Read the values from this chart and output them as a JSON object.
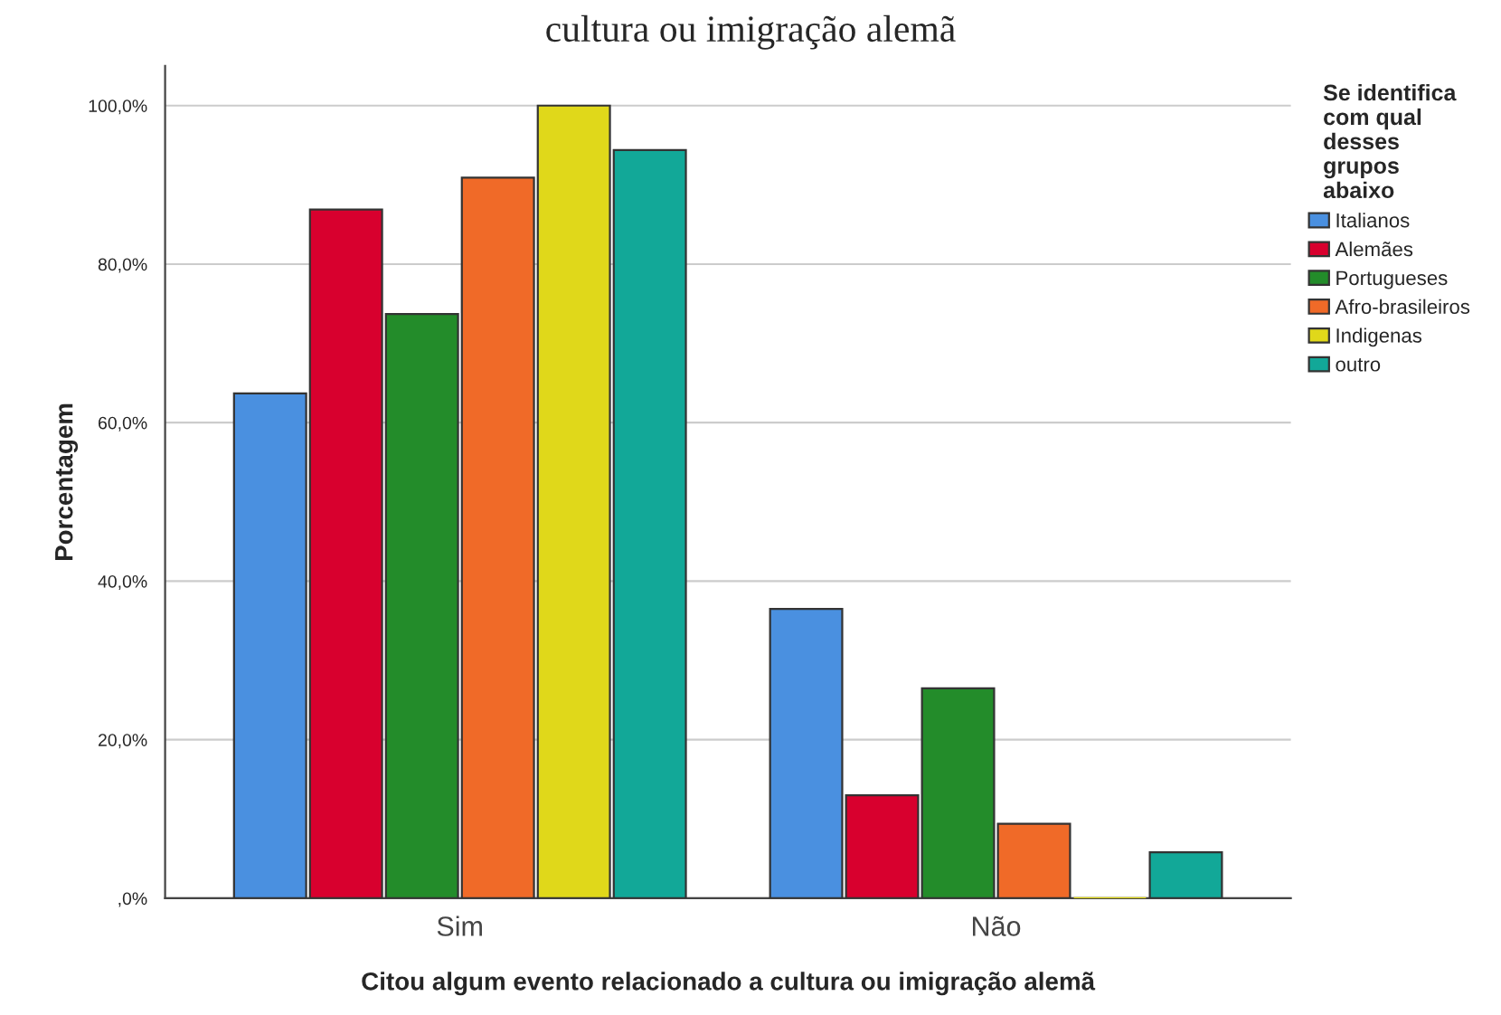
{
  "chart_data": {
    "type": "bar",
    "title": "cultura ou imigração alemã",
    "xlabel": "Citou algum evento relacionado a cultura ou imigração alemã",
    "ylabel": "Porcentagem",
    "legend_title": "Se identifica\ncom qual\ndesses\ngrupos\nabaixo",
    "categories": [
      "Sim",
      "Não"
    ],
    "series": [
      {
        "name": "Italianos",
        "color": "#4a90e0",
        "values": [
          63.7,
          36.5
        ]
      },
      {
        "name": "Alemães",
        "color": "#d8002e",
        "values": [
          86.9,
          13.0
        ]
      },
      {
        "name": "Portugueses",
        "color": "#238c2a",
        "values": [
          73.7,
          26.5
        ]
      },
      {
        "name": "Afro-brasileiros",
        "color": "#f06a28",
        "values": [
          90.9,
          9.4
        ]
      },
      {
        "name": "Indigenas",
        "color": "#e0d81a",
        "values": [
          100,
          0
        ]
      },
      {
        "name": "outro",
        "color": "#12a898",
        "values": [
          94.4,
          5.8
        ]
      }
    ],
    "ylim": [
      0,
      105
    ],
    "yticks": [
      {
        "value": 0,
        "label": ",0%"
      },
      {
        "value": 20,
        "label": "20,0%"
      },
      {
        "value": 40,
        "label": "40,0%"
      },
      {
        "value": 60,
        "label": "60,0%"
      },
      {
        "value": 80,
        "label": "80,0%"
      },
      {
        "value": 100,
        "label": "100,0%"
      }
    ],
    "grid": "y",
    "legend": "right"
  }
}
